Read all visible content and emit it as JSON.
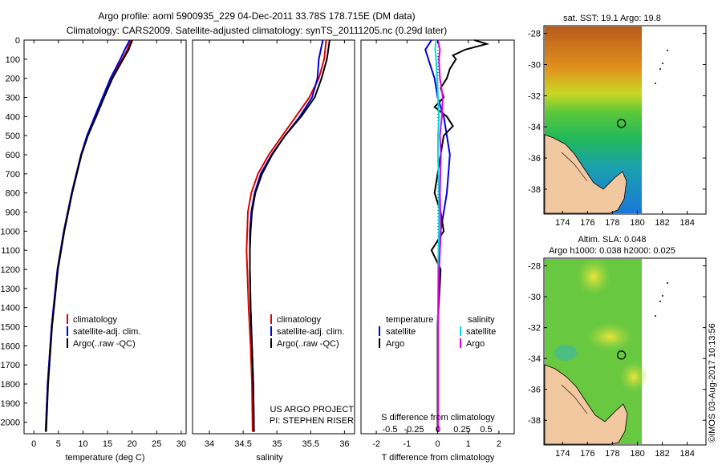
{
  "header": {
    "line1": "Argo profile: aoml 5900935_229 04-Dec-2011 33.78S 178.715E (DM data)",
    "line2": "Climatology: CARS2009. Satellite-adjusted climatology: synTS_20111205.nc (0.29d later)"
  },
  "side_label": "©IMOS 03-Aug-2017 10:13:56",
  "colors": {
    "climatology": "#e00000",
    "satellite": "#0000e0",
    "argo": "#000000",
    "salinity_sat": "#00dddd",
    "salinity_argo": "#dd00dd"
  },
  "chart_data": [
    {
      "type": "line",
      "name": "temperature",
      "xlabel": "temperature (deg C)",
      "ylabel": "",
      "xlim": [
        -2,
        31
      ],
      "ylim": [
        2060,
        0
      ],
      "xticks": [
        "0",
        "5",
        "10",
        "15",
        "20",
        "25",
        "30"
      ],
      "yticks": [
        "0",
        "100",
        "200",
        "300",
        "400",
        "500",
        "600",
        "700",
        "800",
        "900",
        "1000",
        "1100",
        "1200",
        "1300",
        "1400",
        "1500",
        "1600",
        "1700",
        "1800",
        "1900",
        "2000"
      ],
      "legend": [
        "climatology",
        "satellite-adj. clim.",
        "Argo(..raw -QC)"
      ],
      "series": [
        {
          "name": "climatology",
          "depth": [
            0,
            50,
            100,
            200,
            300,
            400,
            500,
            600,
            800,
            1000,
            1200,
            1500,
            1800,
            2050
          ],
          "values": [
            19.8,
            19.0,
            18.0,
            15.8,
            14.2,
            12.6,
            10.9,
            9.6,
            7.7,
            6.1,
            4.8,
            3.6,
            2.8,
            2.4
          ]
        },
        {
          "name": "satellite-adj. clim.",
          "depth": [
            0,
            50,
            100,
            200,
            300,
            400,
            500,
            600,
            800,
            1000,
            1200,
            1500,
            1800,
            2050
          ],
          "values": [
            19.5,
            18.5,
            17.6,
            15.6,
            14.0,
            12.4,
            10.8,
            9.6,
            7.7,
            6.1,
            4.8,
            3.6,
            2.8,
            2.4
          ]
        },
        {
          "name": "Argo(..raw -QC)",
          "depth": [
            0,
            50,
            100,
            200,
            300,
            400,
            500,
            600,
            800,
            1000,
            1200,
            1500,
            1800,
            2050
          ],
          "values": [
            20.0,
            19.3,
            18.2,
            16.0,
            14.3,
            12.7,
            11.0,
            9.7,
            7.8,
            6.2,
            4.9,
            3.7,
            2.9,
            2.5
          ]
        }
      ]
    },
    {
      "type": "line",
      "name": "salinity",
      "xlabel": "salinity",
      "xlim": [
        33.75,
        36.15
      ],
      "ylim": [
        2060,
        0
      ],
      "xticks": [
        "34",
        "34.5",
        "35",
        "35.5",
        "36"
      ],
      "legend": [
        "climatology",
        "satellite-adj. clim.",
        "Argo(..raw -QC)"
      ],
      "annotation": [
        "US ARGO PROJECT",
        "PI: STEPHEN RISER"
      ],
      "series": [
        {
          "name": "climatology",
          "depth": [
            0,
            100,
            200,
            300,
            400,
            500,
            600,
            700,
            800,
            900,
            1000,
            1100,
            1200,
            1400,
            1600,
            1800,
            2050
          ],
          "values": [
            35.73,
            35.7,
            35.62,
            35.48,
            35.28,
            35.08,
            34.88,
            34.72,
            34.62,
            34.57,
            34.56,
            34.55,
            34.56,
            34.58,
            34.61,
            34.63,
            34.64
          ]
        },
        {
          "name": "satellite-adj. clim.",
          "depth": [
            0,
            100,
            200,
            300,
            400,
            500,
            600,
            700,
            800,
            900,
            1000,
            1100,
            1200,
            1400,
            1600,
            1800,
            2050
          ],
          "values": [
            35.68,
            35.62,
            35.6,
            35.52,
            35.34,
            35.12,
            34.92,
            34.76,
            34.67,
            34.62,
            34.6,
            34.6,
            34.6,
            34.61,
            34.63,
            34.65,
            34.66
          ]
        },
        {
          "name": "Argo(..raw -QC)",
          "depth": [
            0,
            100,
            200,
            300,
            400,
            500,
            600,
            700,
            800,
            900,
            1000,
            1100,
            1200,
            1400,
            1600,
            1800,
            2050
          ],
          "values": [
            35.78,
            35.74,
            35.66,
            35.56,
            35.36,
            35.12,
            34.93,
            34.78,
            34.68,
            34.63,
            34.61,
            34.6,
            34.6,
            34.61,
            34.63,
            34.65,
            34.66
          ]
        }
      ]
    },
    {
      "type": "line",
      "name": "difference",
      "xlabel": "T difference from climatology",
      "xlabel_top": "S difference from climatology",
      "xlim": [
        -2.5,
        2.5
      ],
      "ylim": [
        2060,
        0
      ],
      "xticks": [
        "-2",
        "-1",
        "0",
        "1",
        "2"
      ],
      "xticks_top": [
        "-0.5",
        "-0.25",
        "0",
        "0.25",
        "0.5"
      ],
      "legend_headings": [
        "temperature",
        "salinity"
      ],
      "legend": [
        "satellite",
        "Argo",
        "satellite",
        "Argo"
      ],
      "series": [
        {
          "name": "temperature satellite",
          "depth": [
            0,
            50,
            100,
            200,
            300,
            400,
            500,
            600,
            800,
            1000,
            1200,
            1500,
            1800,
            2050
          ],
          "values": [
            -0.2,
            -0.4,
            -0.3,
            -0.1,
            0.0,
            0.2,
            0.3,
            0.4,
            0.3,
            0.1,
            0.05,
            0.0,
            0.0,
            0.0
          ]
        },
        {
          "name": "temperature Argo",
          "depth": [
            0,
            20,
            50,
            80,
            100,
            150,
            200,
            250,
            300,
            350,
            400,
            450,
            500,
            600,
            700,
            800,
            900,
            1000,
            1100,
            1200,
            1500,
            1800,
            2050
          ],
          "values": [
            1.2,
            1.6,
            0.9,
            0.5,
            0.6,
            0.4,
            0.3,
            0.1,
            0.2,
            -0.1,
            0.3,
            0.5,
            0.2,
            0.1,
            0.0,
            -0.1,
            0.1,
            0.2,
            -0.2,
            0.1,
            0.0,
            0.0,
            0.0
          ]
        },
        {
          "name": "salinity satellite",
          "depth": [
            0,
            50,
            100,
            200,
            300,
            400,
            500,
            600,
            800,
            1000,
            1200,
            1500,
            1800,
            2050
          ],
          "values": [
            -0.02,
            -0.03,
            -0.02,
            -0.01,
            0.0,
            0.01,
            0.0,
            0.0,
            0.01,
            0.01,
            0.0,
            0.0,
            0.0,
            0.0
          ]
        },
        {
          "name": "salinity Argo",
          "depth": [
            0,
            50,
            100,
            200,
            300,
            400,
            500,
            600,
            800,
            1000,
            1200,
            1500,
            1800,
            2050
          ],
          "values": [
            0.0,
            0.02,
            0.01,
            0.02,
            0.05,
            0.04,
            0.02,
            0.03,
            0.02,
            0.03,
            0.01,
            0.0,
            0.0,
            0.0
          ]
        }
      ]
    }
  ],
  "maps": [
    {
      "title": "sat. SST: 19.1  Argo: 19.8",
      "xticks": [
        "174",
        "176",
        "178",
        "180",
        "182",
        "184"
      ],
      "yticks": [
        "-28",
        "-30",
        "-32",
        "-34",
        "-36",
        "-38"
      ],
      "marker": {
        "lon": 178.715,
        "lat": -33.78
      }
    },
    {
      "title_line1": "Altim. SLA: 0.048",
      "title_line2": "Argo h1000: 0.038 h2000: 0.025",
      "xticks": [
        "174",
        "176",
        "178",
        "180",
        "182",
        "184"
      ],
      "yticks": [
        "-28",
        "-30",
        "-32",
        "-34",
        "-36",
        "-38"
      ],
      "marker": {
        "lon": 178.715,
        "lat": -33.78
      }
    }
  ]
}
